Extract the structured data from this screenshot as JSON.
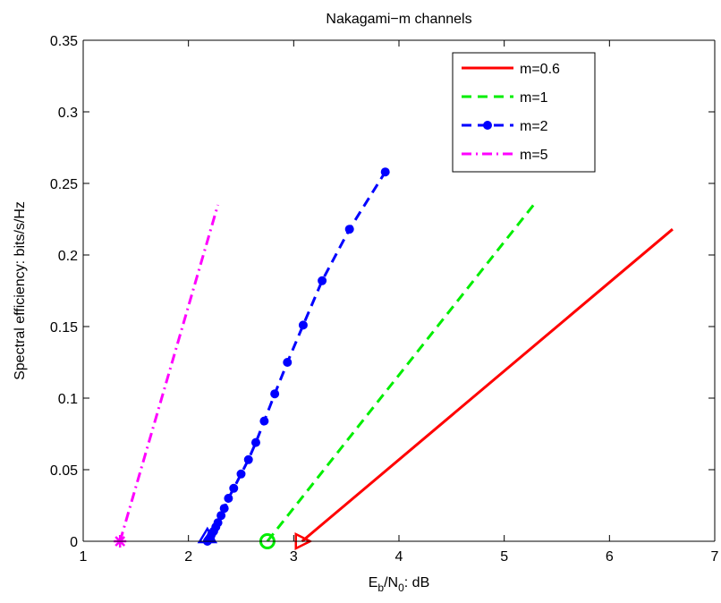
{
  "chart_data": {
    "type": "line",
    "title": "Nakagami−m channels",
    "xlabel": "E_b/N_0: dB",
    "xlabel_parts": {
      "main1": "E",
      "sub1": "b",
      "main2": "/N",
      "sub2": "0",
      "tail": ": dB"
    },
    "ylabel": "Spectral efficiency: bits/s/Hz",
    "xlim": [
      1,
      7
    ],
    "ylim": [
      0,
      0.35
    ],
    "xticks": [
      "1",
      "2",
      "3",
      "4",
      "5",
      "6",
      "7"
    ],
    "yticks": [
      "0",
      "0.05",
      "0.1",
      "0.15",
      "0.2",
      "0.25",
      "0.3",
      "0.35"
    ],
    "grid": false,
    "legend_position": "top-right",
    "series": [
      {
        "name": "m=0.6",
        "color": "#ff0000",
        "style": "solid",
        "start_marker": "triangle-right",
        "points": [
          [
            3.08,
            0.0
          ],
          [
            6.6,
            0.218
          ]
        ]
      },
      {
        "name": "m=1",
        "color": "#00ee00",
        "style": "dashed",
        "start_marker": "circle",
        "points": [
          [
            2.75,
            0.0
          ],
          [
            5.3,
            0.237
          ]
        ]
      },
      {
        "name": "m=2",
        "color": "#0000ff",
        "style": "dashed-dot-marker",
        "start_marker": "triangle-up",
        "points": [
          [
            2.18,
            0.0
          ],
          [
            2.19,
            0.001
          ],
          [
            2.2,
            0.002
          ],
          [
            2.21,
            0.003
          ],
          [
            2.22,
            0.005
          ],
          [
            2.24,
            0.007
          ],
          [
            2.26,
            0.01
          ],
          [
            2.28,
            0.013
          ],
          [
            2.31,
            0.018
          ],
          [
            2.34,
            0.023
          ],
          [
            2.38,
            0.03
          ],
          [
            2.43,
            0.037
          ],
          [
            2.5,
            0.047
          ],
          [
            2.57,
            0.057
          ],
          [
            2.64,
            0.069
          ],
          [
            2.72,
            0.084
          ],
          [
            2.82,
            0.103
          ],
          [
            2.94,
            0.125
          ],
          [
            3.09,
            0.151
          ],
          [
            3.27,
            0.182
          ],
          [
            3.53,
            0.218
          ],
          [
            3.87,
            0.258
          ]
        ]
      },
      {
        "name": "m=5",
        "color": "#ff00ff",
        "style": "dash-dot",
        "start_marker": "asterisk",
        "points": [
          [
            1.35,
            0.0
          ],
          [
            2.28,
            0.235
          ]
        ]
      }
    ]
  }
}
